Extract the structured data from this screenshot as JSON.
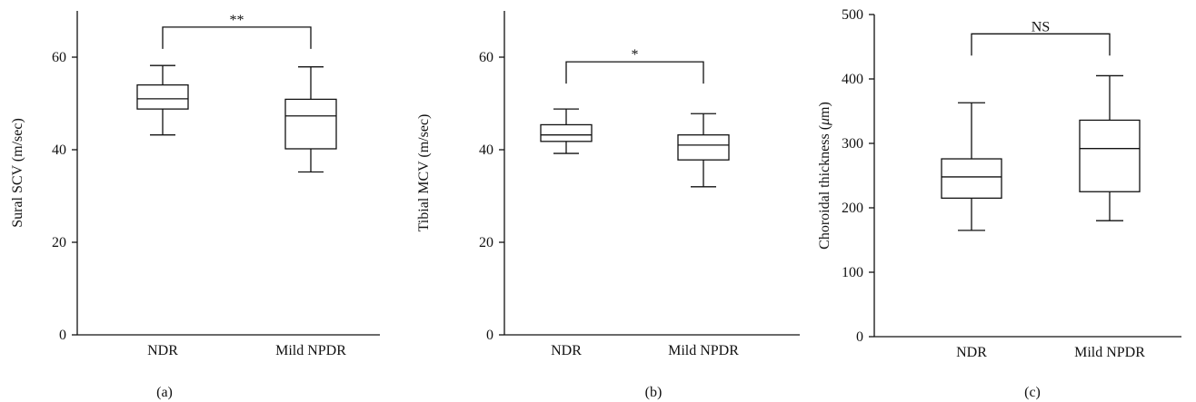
{
  "chart_data": [
    {
      "type": "boxplot",
      "panel_label": "(a)",
      "ylabel": "Sural SCV (m/sec)",
      "ylim": [
        0,
        70
      ],
      "yticks": [
        0,
        20,
        40,
        60
      ],
      "categories": [
        "NDR",
        "Mild NPDR"
      ],
      "boxes": [
        {
          "whisker_low": 43.2,
          "q1": 48.8,
          "median": 51.0,
          "q3": 54.0,
          "whisker_high": 58.2
        },
        {
          "whisker_low": 35.2,
          "q1": 40.2,
          "median": 47.3,
          "q3": 50.9,
          "whisker_high": 57.9
        }
      ],
      "significance": {
        "label": "**",
        "y": 66.5
      }
    },
    {
      "type": "boxplot",
      "panel_label": "(b)",
      "ylabel": "Tibial MCV (m/sec)",
      "ylim": [
        0,
        70
      ],
      "yticks": [
        0,
        20,
        40,
        60
      ],
      "categories": [
        "NDR",
        "Mild NPDR"
      ],
      "boxes": [
        {
          "whisker_low": 39.2,
          "q1": 41.8,
          "median": 43.2,
          "q3": 45.4,
          "whisker_high": 48.8
        },
        {
          "whisker_low": 32.0,
          "q1": 37.8,
          "median": 41.0,
          "q3": 43.2,
          "whisker_high": 47.8
        }
      ],
      "significance": {
        "label": "*",
        "y": 59.0
      }
    },
    {
      "type": "boxplot",
      "panel_label": "(c)",
      "ylabel": "Choroidal thickness (",
      "ylabel_unit": "μ",
      "ylabel_unit_rest": "m)",
      "ylim": [
        0,
        500
      ],
      "yticks": [
        0,
        100,
        200,
        300,
        400,
        500
      ],
      "categories": [
        "NDR",
        "Mild NPDR"
      ],
      "boxes": [
        {
          "whisker_low": 165,
          "q1": 215,
          "median": 248,
          "q3": 276,
          "whisker_high": 363
        },
        {
          "whisker_low": 180,
          "q1": 225,
          "median": 292,
          "q3": 336,
          "whisker_high": 405
        }
      ],
      "significance": {
        "label": "NS",
        "y": 470
      }
    }
  ]
}
